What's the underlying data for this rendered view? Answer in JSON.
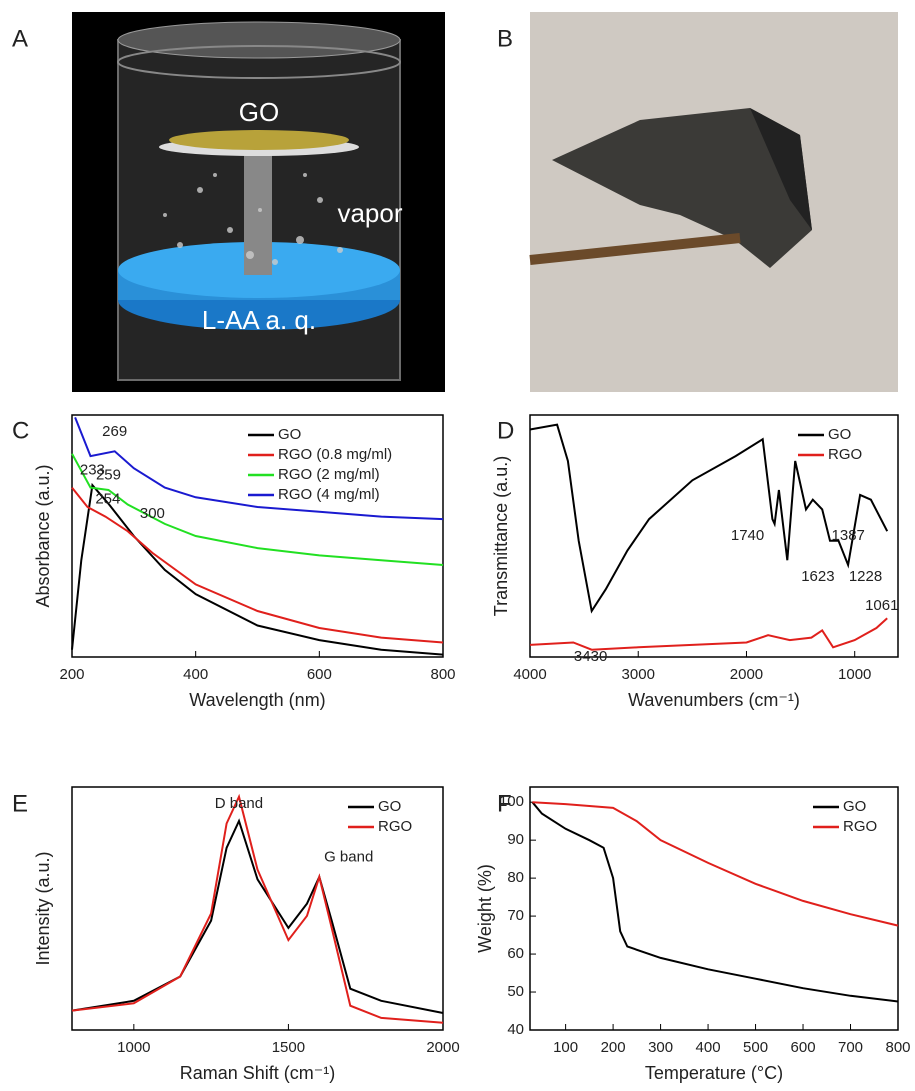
{
  "panel_labels": [
    "A",
    "B",
    "C",
    "D",
    "E",
    "F"
  ],
  "diagram": {
    "labels": [
      "GO",
      "vapor",
      "L-AA a. q."
    ]
  },
  "chart_data": [
    {
      "type": "line",
      "xlabel": "Wavelength (nm)",
      "ylabel": "Absorbance (a.u.)",
      "xlim": [
        200,
        800
      ],
      "xticks": [
        200,
        400,
        600,
        800
      ],
      "ylim": [
        0,
        1
      ],
      "legend": "upper right",
      "series": [
        {
          "name": "GO",
          "color": "#000000",
          "x": [
            200,
            215,
            233,
            260,
            300,
            350,
            400,
            500,
            600,
            700,
            800
          ],
          "values": [
            0.03,
            0.4,
            0.71,
            0.63,
            0.5,
            0.36,
            0.26,
            0.13,
            0.07,
            0.03,
            0.01
          ]
        },
        {
          "name": "RGO (0.8 mg/ml)",
          "color": "#e0201c",
          "x": [
            200,
            225,
            254,
            290,
            330,
            400,
            500,
            600,
            700,
            800
          ],
          "values": [
            0.7,
            0.62,
            0.58,
            0.52,
            0.43,
            0.3,
            0.19,
            0.12,
            0.08,
            0.06
          ]
        },
        {
          "name": "RGO (2 mg/ml)",
          "color": "#22e022",
          "x": [
            200,
            230,
            259,
            290,
            350,
            400,
            500,
            600,
            700,
            800
          ],
          "values": [
            0.84,
            0.7,
            0.69,
            0.63,
            0.55,
            0.5,
            0.45,
            0.42,
            0.4,
            0.38
          ]
        },
        {
          "name": "RGO (4 mg/ml)",
          "color": "#1a1ad0",
          "x": [
            205,
            230,
            269,
            300,
            350,
            400,
            500,
            600,
            700,
            800
          ],
          "values": [
            0.99,
            0.83,
            0.85,
            0.78,
            0.7,
            0.66,
            0.62,
            0.6,
            0.58,
            0.57
          ]
        }
      ],
      "annotations": [
        {
          "text": "269",
          "x": 269,
          "y": 0.93
        },
        {
          "text": "259",
          "x": 259,
          "y": 0.75
        },
        {
          "text": "254",
          "x": 258,
          "y": 0.65
        },
        {
          "text": "233",
          "x": 233,
          "y": 0.77
        },
        {
          "text": "300",
          "x": 330,
          "y": 0.59
        }
      ]
    },
    {
      "type": "line",
      "xlabel": "Wavenumbers (cm⁻¹)",
      "ylabel": "Transmittance (a.u.)",
      "xlim": [
        4000,
        600
      ],
      "xticks": [
        4000,
        3000,
        2000,
        1000
      ],
      "ylim": [
        0,
        1
      ],
      "legend": "upper right",
      "series": [
        {
          "name": "GO",
          "color": "#000000",
          "x": [
            4000,
            3750,
            3650,
            3550,
            3430,
            3300,
            3100,
            2900,
            2500,
            2100,
            1850,
            1760,
            1740,
            1700,
            1623,
            1550,
            1450,
            1387,
            1300,
            1228,
            1150,
            1061,
            950,
            850,
            700
          ],
          "values": [
            0.94,
            0.96,
            0.81,
            0.48,
            0.19,
            0.28,
            0.44,
            0.57,
            0.73,
            0.83,
            0.9,
            0.57,
            0.55,
            0.69,
            0.4,
            0.81,
            0.61,
            0.65,
            0.61,
            0.48,
            0.48,
            0.38,
            0.67,
            0.65,
            0.52
          ]
        },
        {
          "name": "RGO",
          "color": "#e0201c",
          "x": [
            4000,
            3600,
            3430,
            3000,
            2000,
            1800,
            1600,
            1400,
            1300,
            1200,
            1000,
            800,
            700
          ],
          "values": [
            0.05,
            0.06,
            0.03,
            0.04,
            0.06,
            0.09,
            0.07,
            0.08,
            0.11,
            0.04,
            0.07,
            0.12,
            0.16
          ]
        }
      ],
      "annotations": [
        {
          "text": "1740",
          "x": 1990,
          "y": 0.5
        },
        {
          "text": "1623",
          "x": 1340,
          "y": 0.33
        },
        {
          "text": "1387",
          "x": 1060,
          "y": 0.5
        },
        {
          "text": "1228",
          "x": 900,
          "y": 0.33
        },
        {
          "text": "1061",
          "x": 750,
          "y": 0.21
        },
        {
          "text": "3430",
          "x": 3440,
          "y": 0.0
        }
      ]
    },
    {
      "type": "line",
      "xlabel": "Raman Shift (cm⁻¹)",
      "ylabel": "Intensity (a.u.)",
      "xlim": [
        800,
        2000
      ],
      "xticks": [
        1000,
        1500,
        2000
      ],
      "ylim": [
        0,
        1
      ],
      "legend": "upper right",
      "series": [
        {
          "name": "GO",
          "color": "#000000",
          "x": [
            800,
            1000,
            1150,
            1250,
            1300,
            1340,
            1400,
            1500,
            1560,
            1600,
            1640,
            1700,
            1800,
            2000
          ],
          "values": [
            0.08,
            0.12,
            0.22,
            0.45,
            0.75,
            0.86,
            0.62,
            0.42,
            0.52,
            0.63,
            0.45,
            0.17,
            0.12,
            0.07
          ]
        },
        {
          "name": "RGO",
          "color": "#e0201c",
          "x": [
            800,
            1000,
            1150,
            1250,
            1300,
            1340,
            1400,
            1500,
            1560,
            1600,
            1640,
            1700,
            1800,
            2000
          ],
          "values": [
            0.08,
            0.11,
            0.22,
            0.48,
            0.85,
            0.96,
            0.66,
            0.37,
            0.47,
            0.63,
            0.42,
            0.1,
            0.05,
            0.03
          ]
        }
      ],
      "annotations": [
        {
          "text": "D band",
          "x": 1340,
          "y": 0.93
        },
        {
          "text": "G band",
          "x": 1695,
          "y": 0.71
        }
      ]
    },
    {
      "type": "line",
      "xlabel": "Temperature (°C)",
      "ylabel": "Weight (%)",
      "xlim": [
        25,
        800
      ],
      "xticks": [
        100,
        200,
        300,
        400,
        500,
        600,
        700,
        800
      ],
      "ylim": [
        40,
        104
      ],
      "yticks": [
        40,
        50,
        60,
        70,
        80,
        90,
        100
      ],
      "legend": "upper right",
      "series": [
        {
          "name": "GO",
          "color": "#000000",
          "x": [
            30,
            50,
            100,
            150,
            180,
            200,
            215,
            230,
            300,
            400,
            500,
            600,
            700,
            800
          ],
          "values": [
            100,
            97,
            93,
            90,
            88,
            80,
            66,
            62,
            59,
            56,
            53.5,
            51,
            49,
            47.5
          ]
        },
        {
          "name": "RGO",
          "color": "#e0201c",
          "x": [
            30,
            100,
            200,
            250,
            300,
            400,
            500,
            600,
            700,
            800
          ],
          "values": [
            100,
            99.5,
            98.5,
            95,
            90,
            84,
            78.5,
            74,
            70.5,
            67.5
          ]
        }
      ],
      "annotations": []
    }
  ]
}
